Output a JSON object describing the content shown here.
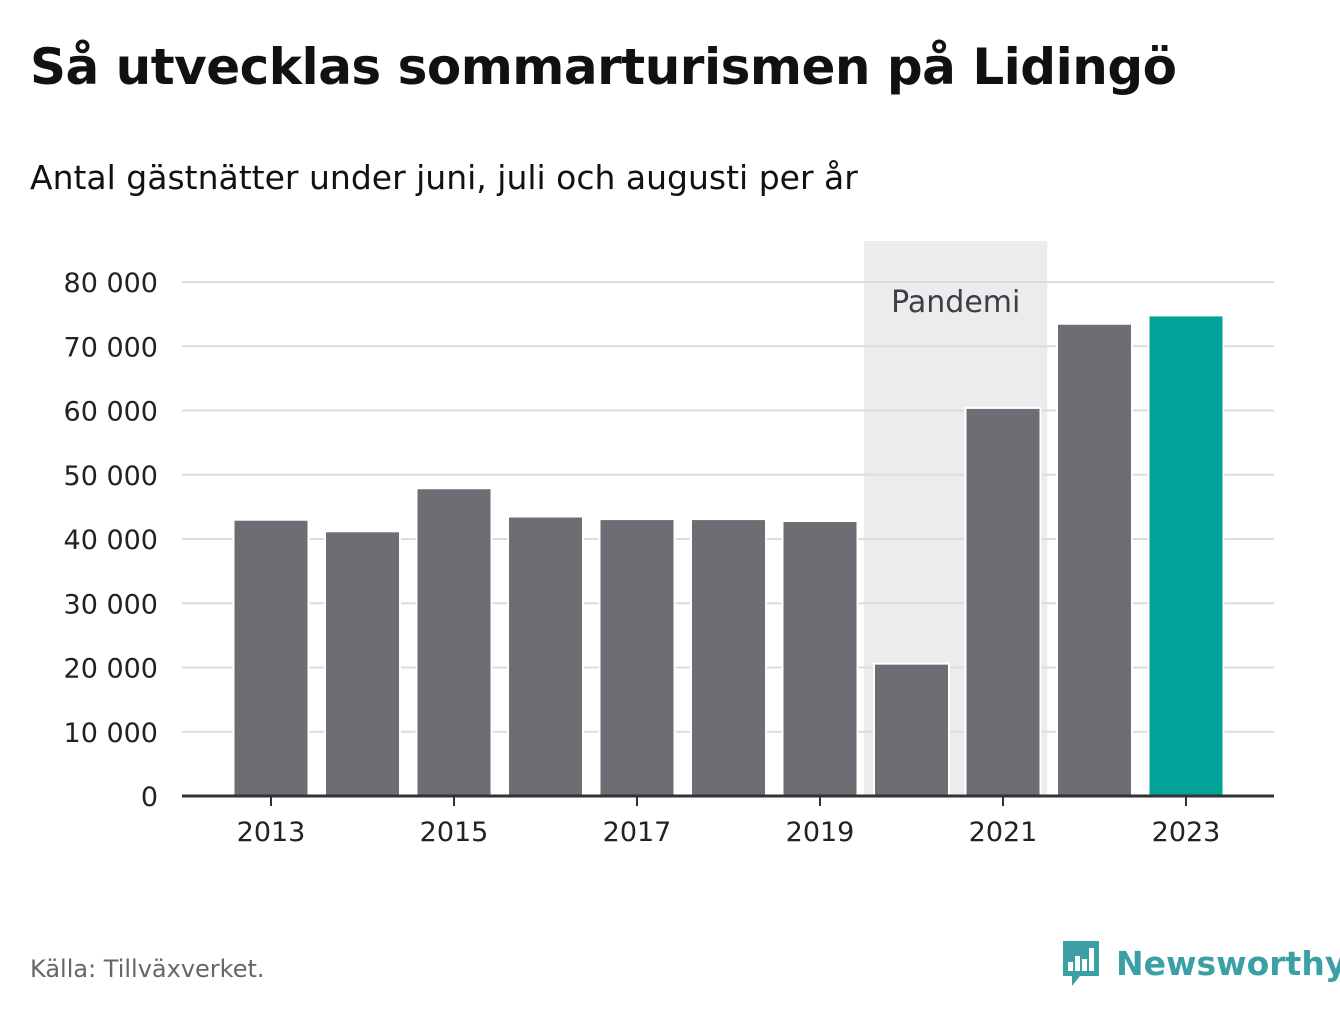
{
  "header": {
    "title": "Så utvecklas sommarturismen på Lidingö",
    "subtitle": "Antal gästnätter under juni, juli och augusti per år"
  },
  "footer": {
    "source": "Källa: Tillväxverket.",
    "brand": "Newsworthy",
    "brand_icon": "bar-chart-speech-bubble-icon"
  },
  "colors": {
    "bar": "#6e6d74",
    "highlight": "#00a398",
    "band": "#ececec",
    "grid": "#dcdcdc",
    "axis": "#333333",
    "brand": "#3aa0a6"
  },
  "chart_data": {
    "type": "bar",
    "categories": [
      "2013",
      "2014",
      "2015",
      "2016",
      "2017",
      "2018",
      "2019",
      "2020",
      "2021",
      "2022",
      "2023"
    ],
    "values": [
      43000,
      41200,
      47900,
      43500,
      43100,
      43100,
      42800,
      20600,
      60400,
      73500,
      74800
    ],
    "highlight_category": "2023",
    "x_tick_labels": [
      "2013",
      "2015",
      "2017",
      "2019",
      "2021",
      "2023"
    ],
    "y_ticks": [
      0,
      10000,
      20000,
      30000,
      40000,
      50000,
      60000,
      70000,
      80000
    ],
    "y_tick_labels": [
      "0",
      "10 000",
      "20 000",
      "30 000",
      "40 000",
      "50 000",
      "60 000",
      "70 000",
      "80 000"
    ],
    "ylim": [
      0,
      80000
    ],
    "grid": true,
    "annotation": {
      "label": "Pandemi",
      "from": "2020",
      "to": "2021"
    },
    "xlabel": "",
    "ylabel": ""
  }
}
